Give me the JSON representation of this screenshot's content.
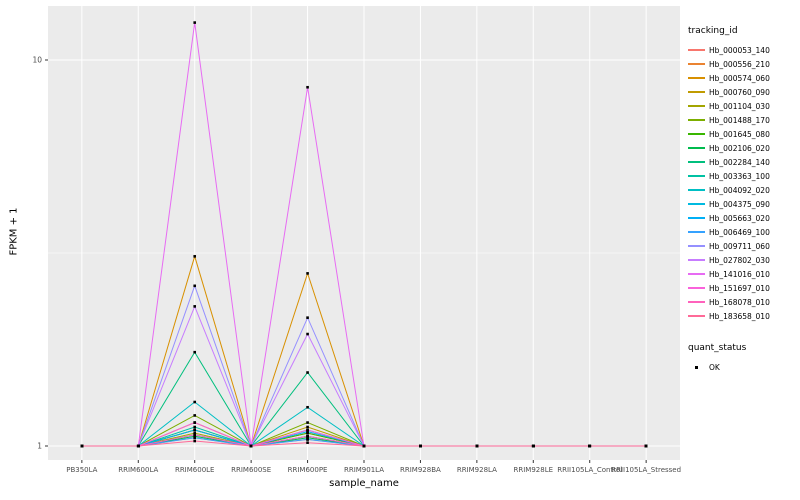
{
  "chart_data": {
    "type": "line",
    "title": "",
    "xlabel": "sample_name",
    "ylabel": "FPKM + 1",
    "y_scale": "log10",
    "y_ticks": [
      1,
      10
    ],
    "y_minor_ticks": [
      3.1623
    ],
    "ylim": [
      1,
      14
    ],
    "grid": "on",
    "panel_color": "#EBEBEB",
    "gridline_color": "#FFFFFF",
    "point_color": "#000000",
    "legend_position": "right",
    "legend_title": "tracking_id",
    "categories": [
      "PB350LA",
      "RRIM600LA",
      "RRIM600LE",
      "RRIM600SE",
      "RRIM600PE",
      "RRIM901LA",
      "RRIM928BA",
      "RRIM928LA",
      "RRIM928LE",
      "RRII105LA_Control",
      "RRII105LA_Stressed"
    ],
    "series": [
      {
        "name": "Hb_000053_140",
        "color": "#F8766D",
        "values": [
          1,
          1,
          1.05,
          1,
          1.04,
          1,
          1,
          1,
          1,
          1,
          1
        ]
      },
      {
        "name": "Hb_000556_210",
        "color": "#EA8331",
        "values": [
          1,
          1,
          1.1,
          1,
          1.08,
          1,
          1,
          1,
          1,
          1,
          1
        ]
      },
      {
        "name": "Hb_000574_060",
        "color": "#D89000",
        "values": [
          1,
          1,
          3.1,
          1,
          2.8,
          1,
          1,
          1,
          1,
          1,
          1
        ]
      },
      {
        "name": "Hb_000760_090",
        "color": "#C09B00",
        "values": [
          1,
          1,
          1.15,
          1,
          1.12,
          1,
          1,
          1,
          1,
          1,
          1
        ]
      },
      {
        "name": "Hb_001104_030",
        "color": "#A3A500",
        "values": [
          1,
          1,
          1.08,
          1,
          1.06,
          1,
          1,
          1,
          1,
          1,
          1
        ]
      },
      {
        "name": "Hb_001488_170",
        "color": "#7CAE00",
        "values": [
          1,
          1,
          1.2,
          1,
          1.15,
          1,
          1,
          1,
          1,
          1,
          1
        ]
      },
      {
        "name": "Hb_001645_080",
        "color": "#39B600",
        "values": [
          1,
          1,
          1.1,
          1,
          1.08,
          1,
          1,
          1,
          1,
          1,
          1
        ]
      },
      {
        "name": "Hb_002106_020",
        "color": "#00BB4E",
        "values": [
          1,
          1,
          1.06,
          1,
          1.05,
          1,
          1,
          1,
          1,
          1,
          1
        ]
      },
      {
        "name": "Hb_002284_140",
        "color": "#00BF7D",
        "values": [
          1,
          1,
          1.75,
          1,
          1.55,
          1,
          1,
          1,
          1,
          1,
          1
        ]
      },
      {
        "name": "Hb_003363_100",
        "color": "#00C1A3",
        "values": [
          1,
          1,
          1.12,
          1,
          1.1,
          1,
          1,
          1,
          1,
          1,
          1
        ]
      },
      {
        "name": "Hb_004092_020",
        "color": "#00BFC4",
        "values": [
          1,
          1,
          1.3,
          1,
          1.26,
          1,
          1,
          1,
          1,
          1,
          1
        ]
      },
      {
        "name": "Hb_004375_090",
        "color": "#00BAE0",
        "values": [
          1,
          1,
          1.07,
          1,
          1.06,
          1,
          1,
          1,
          1,
          1,
          1
        ]
      },
      {
        "name": "Hb_005663_020",
        "color": "#00B0F6",
        "values": [
          1,
          1,
          1.1,
          1,
          1.09,
          1,
          1,
          1,
          1,
          1,
          1
        ]
      },
      {
        "name": "Hb_006469_100",
        "color": "#35A2FF",
        "values": [
          1,
          1,
          1.05,
          1,
          1.04,
          1,
          1,
          1,
          1,
          1,
          1
        ]
      },
      {
        "name": "Hb_009711_060",
        "color": "#9590FF",
        "values": [
          1,
          1,
          2.6,
          1,
          2.15,
          1,
          1,
          1,
          1,
          1,
          1
        ]
      },
      {
        "name": "Hb_027802_030",
        "color": "#C77CFF",
        "values": [
          1,
          1,
          2.3,
          1,
          1.95,
          1,
          1,
          1,
          1,
          1,
          1
        ]
      },
      {
        "name": "Hb_141016_010",
        "color": "#E76BF3",
        "values": [
          1,
          1,
          12.5,
          1,
          8.5,
          1,
          1,
          1,
          1,
          1,
          1
        ]
      },
      {
        "name": "Hb_151697_010",
        "color": "#FA62DB",
        "values": [
          1,
          1,
          1.15,
          1,
          1.1,
          1,
          1,
          1,
          1,
          1,
          1
        ]
      },
      {
        "name": "Hb_168078_010",
        "color": "#FF62BC",
        "values": [
          1,
          1,
          1.07,
          1,
          1.06,
          1,
          1,
          1,
          1,
          1,
          1
        ]
      },
      {
        "name": "Hb_183658_010",
        "color": "#FF6A98",
        "values": [
          1,
          1,
          1.03,
          1,
          1.02,
          1,
          1,
          1,
          1,
          1,
          1
        ]
      }
    ],
    "quant_legend": {
      "title": "quant_status",
      "items": [
        {
          "label": "OK"
        }
      ]
    }
  }
}
